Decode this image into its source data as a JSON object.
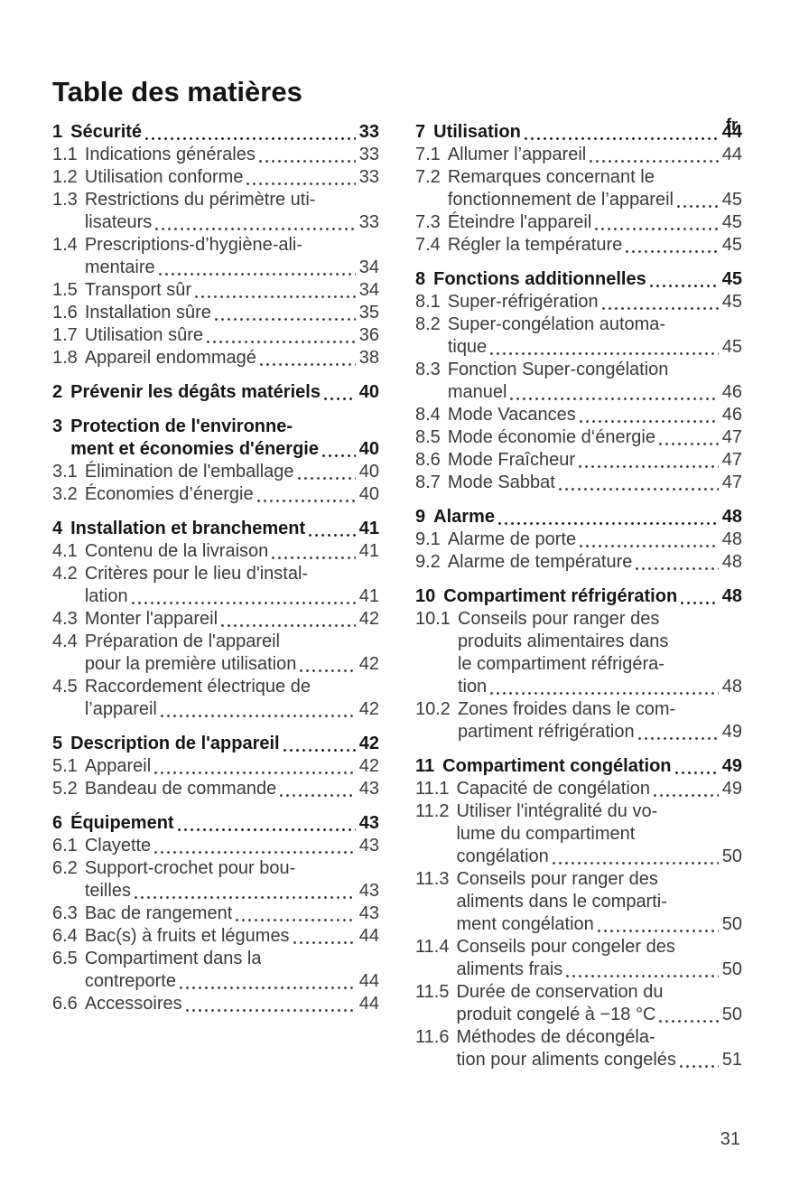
{
  "page": {
    "lang_marker": "fr",
    "title": "Table des matières",
    "footer_page_number": "31"
  },
  "toc": {
    "columns": [
      {
        "sections": [
          {
            "number": "1",
            "title_lines": [
              "Sécurité"
            ],
            "page": "33",
            "entries": [
              {
                "number": "1.1",
                "lines": [
                  "Indications générales"
                ],
                "page": "33"
              },
              {
                "number": "1.2",
                "lines": [
                  "Utilisation conforme"
                ],
                "page": "33"
              },
              {
                "number": "1.3",
                "lines": [
                  "Restrictions du périmètre uti-",
                  "lisateurs"
                ],
                "page": "33"
              },
              {
                "number": "1.4",
                "lines": [
                  "Prescriptions-d’hygiène-ali-",
                  "mentaire"
                ],
                "page": "34"
              },
              {
                "number": "1.5",
                "lines": [
                  "Transport sûr"
                ],
                "page": "34"
              },
              {
                "number": "1.6",
                "lines": [
                  "Installation sûre"
                ],
                "page": "35"
              },
              {
                "number": "1.7",
                "lines": [
                  "Utilisation sûre"
                ],
                "page": "36"
              },
              {
                "number": "1.8",
                "lines": [
                  "Appareil endommagé"
                ],
                "page": "38"
              }
            ]
          },
          {
            "number": "2",
            "title_lines": [
              "Prévenir les dégâts matériels"
            ],
            "page": "40",
            "entries": []
          },
          {
            "number": "3",
            "title_lines": [
              "Protection de l'environne-",
              "ment et économies d'énergie"
            ],
            "page": "40",
            "entries": [
              {
                "number": "3.1",
                "lines": [
                  "Élimination de l'emballage"
                ],
                "page": "40"
              },
              {
                "number": "3.2",
                "lines": [
                  "Économies d’énergie"
                ],
                "page": "40"
              }
            ]
          },
          {
            "number": "4",
            "title_lines": [
              "Installation et branchement"
            ],
            "page": "41",
            "entries": [
              {
                "number": "4.1",
                "lines": [
                  "Contenu de la livraison"
                ],
                "page": "41"
              },
              {
                "number": "4.2",
                "lines": [
                  "Critères pour le lieu d'instal-",
                  "lation"
                ],
                "page": "41"
              },
              {
                "number": "4.3",
                "lines": [
                  "Monter l'appareil"
                ],
                "page": "42"
              },
              {
                "number": "4.4",
                "lines": [
                  "Préparation de l'appareil",
                  "pour la première utilisation"
                ],
                "page": "42"
              },
              {
                "number": "4.5",
                "lines": [
                  "Raccordement électrique de",
                  "l’appareil"
                ],
                "page": "42"
              }
            ]
          },
          {
            "number": "5",
            "title_lines": [
              "Description de l'appareil"
            ],
            "page": "42",
            "entries": [
              {
                "number": "5.1",
                "lines": [
                  "Appareil"
                ],
                "page": "42"
              },
              {
                "number": "5.2",
                "lines": [
                  "Bandeau de commande"
                ],
                "page": "43"
              }
            ]
          },
          {
            "number": "6",
            "title_lines": [
              "Équipement"
            ],
            "page": "43",
            "entries": [
              {
                "number": "6.1",
                "lines": [
                  "Clayette"
                ],
                "page": "43"
              },
              {
                "number": "6.2",
                "lines": [
                  "Support-crochet pour bou-",
                  "teilles"
                ],
                "page": "43"
              },
              {
                "number": "6.3",
                "lines": [
                  "Bac de rangement"
                ],
                "page": "43"
              },
              {
                "number": "6.4",
                "lines": [
                  "Bac(s) à fruits et légumes"
                ],
                "page": "44"
              },
              {
                "number": "6.5",
                "lines": [
                  "Compartiment dans la",
                  "contreporte"
                ],
                "page": "44"
              },
              {
                "number": "6.6",
                "lines": [
                  "Accessoires"
                ],
                "page": "44"
              }
            ]
          }
        ]
      },
      {
        "sections": [
          {
            "number": "7",
            "title_lines": [
              "Utilisation"
            ],
            "page": "44",
            "entries": [
              {
                "number": "7.1",
                "lines": [
                  "Allumer l’appareil"
                ],
                "page": "44"
              },
              {
                "number": "7.2",
                "lines": [
                  "Remarques concernant le",
                  "fonctionnement de l’appareil"
                ],
                "page": "45"
              },
              {
                "number": "7.3",
                "lines": [
                  "Éteindre l'appareil"
                ],
                "page": "45"
              },
              {
                "number": "7.4",
                "lines": [
                  "Régler la température"
                ],
                "page": "45"
              }
            ]
          },
          {
            "number": "8",
            "title_lines": [
              "Fonctions additionnelles"
            ],
            "page": "45",
            "entries": [
              {
                "number": "8.1",
                "lines": [
                  "Super-réfrigération"
                ],
                "page": "45"
              },
              {
                "number": "8.2",
                "lines": [
                  "Super-congélation automa-",
                  "tique"
                ],
                "page": "45"
              },
              {
                "number": "8.3",
                "lines": [
                  "Fonction Super-congélation",
                  "manuel"
                ],
                "page": "46"
              },
              {
                "number": "8.4",
                "lines": [
                  "Mode Vacances"
                ],
                "page": "46"
              },
              {
                "number": "8.5",
                "lines": [
                  "Mode économie d‘énergie"
                ],
                "page": "47"
              },
              {
                "number": "8.6",
                "lines": [
                  "Mode Fraîcheur"
                ],
                "page": "47"
              },
              {
                "number": "8.7",
                "lines": [
                  "Mode Sabbat"
                ],
                "page": "47"
              }
            ]
          },
          {
            "number": "9",
            "title_lines": [
              "Alarme"
            ],
            "page": "48",
            "entries": [
              {
                "number": "9.1",
                "lines": [
                  "Alarme de porte"
                ],
                "page": "48"
              },
              {
                "number": "9.2",
                "lines": [
                  "Alarme de température"
                ],
                "page": "48"
              }
            ]
          },
          {
            "number": "10",
            "title_lines": [
              "Compartiment réfrigération"
            ],
            "page": "48",
            "entries": [
              {
                "number": "10.1",
                "lines": [
                  "Conseils pour ranger des",
                  "produits alimentaires dans",
                  "le compartiment réfrigéra-",
                  "tion"
                ],
                "page": "48"
              },
              {
                "number": "10.2",
                "lines": [
                  "Zones froides dans le com-",
                  "partiment réfrigération"
                ],
                "page": "49"
              }
            ]
          },
          {
            "number": "11",
            "title_lines": [
              "Compartiment congélation"
            ],
            "page": "49",
            "entries": [
              {
                "number": "11.1",
                "lines": [
                  "Capacité de congélation"
                ],
                "page": "49"
              },
              {
                "number": "11.2",
                "lines": [
                  "Utiliser l'intégralité du vo-",
                  "lume du compartiment",
                  "congélation"
                ],
                "page": "50"
              },
              {
                "number": "11.3",
                "lines": [
                  "Conseils pour ranger des",
                  "aliments dans le comparti-",
                  "ment congélation"
                ],
                "page": "50"
              },
              {
                "number": "11.4",
                "lines": [
                  "Conseils pour congeler des",
                  "aliments frais"
                ],
                "page": "50"
              },
              {
                "number": "11.5",
                "lines": [
                  "Durée de conservation du",
                  "produit congelé à −18 °C"
                ],
                "page": "50"
              },
              {
                "number": "11.6",
                "lines": [
                  "Méthodes de décongéla-",
                  "tion pour aliments congelés"
                ],
                "page": "51"
              }
            ]
          }
        ]
      }
    ]
  }
}
